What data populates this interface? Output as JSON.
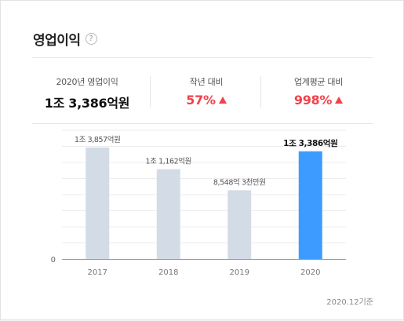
{
  "header": {
    "title": "영업이익",
    "help_icon": "?"
  },
  "stats": [
    {
      "label": "2020년 영업이익",
      "value": "1조 3,386억원",
      "tone": "neutral"
    },
    {
      "label": "작년 대비",
      "value": "57%",
      "tone": "up",
      "icon": "triangle-up-icon"
    },
    {
      "label": "업계평균 대비",
      "value": "998%",
      "tone": "up",
      "icon": "triangle-up-icon"
    }
  ],
  "chart_data": {
    "type": "bar",
    "categories": [
      "2017",
      "2018",
      "2019",
      "2020"
    ],
    "values": [
      1.3857,
      1.1162,
      0.8548,
      1.3386
    ],
    "value_unit": "조원",
    "data_labels": [
      "1조 3,857억원",
      "1조 1,162억원",
      "8,548억 3천만원",
      "1조 3,386억원"
    ],
    "highlight_index": 3,
    "ylim": [
      0,
      1.6
    ],
    "ytick_labels": [
      "0"
    ],
    "grid": true,
    "colors": {
      "bar": "#d3dce6",
      "highlight": "#3d9bff",
      "axis": "#999999",
      "grid": "#ececec"
    }
  },
  "footnote": "2020.12기준"
}
